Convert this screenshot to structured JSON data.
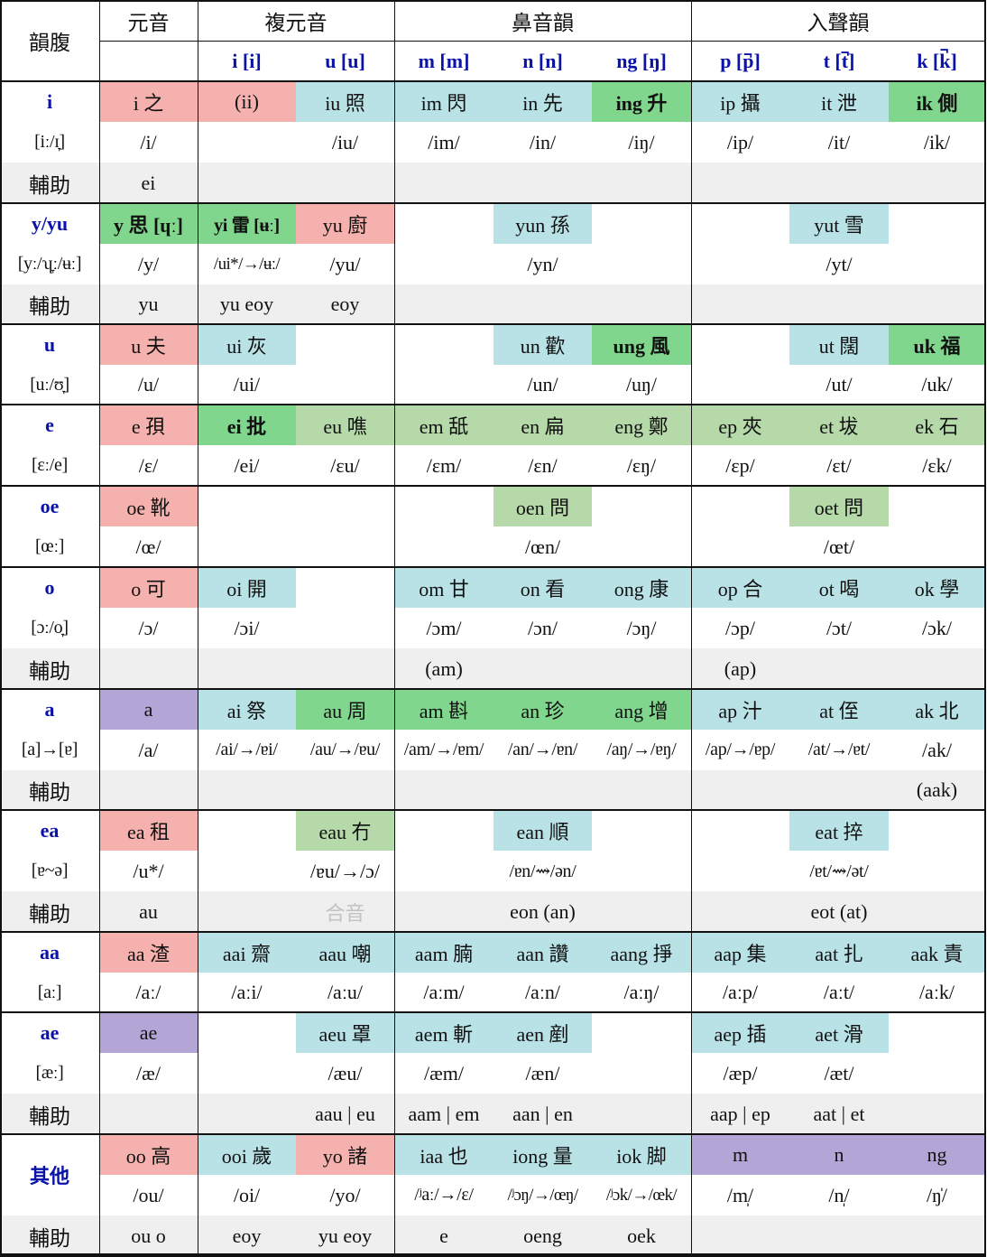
{
  "colors": {
    "pink": "#f4b1ad",
    "cyan": "#b9e2e7",
    "green": "#7fd68c",
    "lightgreen": "#b6d9a9",
    "purple": "#b3a6d6",
    "gray": "#efefef",
    "header_blue": "#0b12a8"
  },
  "headers": {
    "corner": "韻腹",
    "groups": [
      "元音",
      "複元音",
      "鼻音韻",
      "入聲韻"
    ],
    "codas": [
      "i [i]",
      "u [u]",
      "m [m]",
      "n [n]",
      "ng [ŋ]",
      "p [p̚]",
      "t [t̚]",
      "k [k̚]"
    ]
  },
  "rows": [
    {
      "id": "i",
      "name": "i",
      "ipa": "[iː/ɪ̞]",
      "main": [
        {
          "t": "i 之",
          "c": "pink"
        },
        {
          "t": "(ii)",
          "c": "pink"
        },
        {
          "t": "iu 照",
          "c": "cyan"
        },
        {
          "t": "im 閃",
          "c": "cyan"
        },
        {
          "t": "in 先",
          "c": "cyan"
        },
        {
          "t": "ing 升",
          "c": "green",
          "b": 1
        },
        {
          "t": "ip 攝",
          "c": "cyan"
        },
        {
          "t": "it 泄",
          "c": "cyan"
        },
        {
          "t": "ik 側",
          "c": "green",
          "b": 1
        }
      ],
      "ipa_row": [
        "/i/",
        "",
        "/iu/",
        "/im/",
        "/in/",
        "/iŋ/",
        "/ip/",
        "/it/",
        "/ik/"
      ],
      "aux_label": "輔助",
      "aux": [
        "ei",
        "",
        "",
        "",
        "",
        "",
        "",
        "",
        ""
      ]
    },
    {
      "id": "y",
      "name": "y/yu",
      "ipa": "[yː/ʮ̞ː/ʉː]",
      "main": [
        {
          "t": "y 思 [ɥː]",
          "c": "green",
          "b": 1
        },
        {
          "t": "yi 雷 [ʉː]",
          "c": "green",
          "b": 1
        },
        {
          "t": "yu 廚",
          "c": "pink"
        },
        {
          "t": "",
          "c": ""
        },
        {
          "t": "yun 孫",
          "c": "cyan"
        },
        {
          "t": "",
          "c": ""
        },
        {
          "t": "",
          "c": ""
        },
        {
          "t": "yut 雪",
          "c": "cyan"
        },
        {
          "t": "",
          "c": ""
        }
      ],
      "ipa_row": [
        "/y/",
        "/ui*/→/ʉː/",
        "/yu/",
        "",
        "/yn/",
        "",
        "",
        "/yt/",
        ""
      ],
      "aux_label": "輔助",
      "aux": [
        "yu",
        "yu eoy",
        "eoy",
        "",
        "",
        "",
        "",
        "",
        ""
      ]
    },
    {
      "id": "u",
      "name": "u",
      "ipa": "[uː/ʊ̞]",
      "main": [
        {
          "t": "u 夫",
          "c": "pink"
        },
        {
          "t": "ui 灰",
          "c": "cyan"
        },
        {
          "t": "",
          "c": ""
        },
        {
          "t": "",
          "c": ""
        },
        {
          "t": "un 歡",
          "c": "cyan"
        },
        {
          "t": "ung 風",
          "c": "green",
          "b": 1
        },
        {
          "t": "",
          "c": ""
        },
        {
          "t": "ut 闊",
          "c": "cyan"
        },
        {
          "t": "uk 福",
          "c": "green",
          "b": 1
        }
      ],
      "ipa_row": [
        "/u/",
        "/ui/",
        "",
        "",
        "/un/",
        "/uŋ/",
        "",
        "/ut/",
        "/uk/"
      ]
    },
    {
      "id": "e",
      "name": "e",
      "ipa": "[ɛː/e]",
      "main": [
        {
          "t": "e 孭",
          "c": "pink"
        },
        {
          "t": "ei 批",
          "c": "green",
          "b": 1
        },
        {
          "t": "eu 噍",
          "c": "lightgreen"
        },
        {
          "t": "em 舐",
          "c": "lightgreen"
        },
        {
          "t": "en 扁",
          "c": "lightgreen"
        },
        {
          "t": "eng 鄭",
          "c": "lightgreen"
        },
        {
          "t": "ep 夾",
          "c": "lightgreen"
        },
        {
          "t": "et 坺",
          "c": "lightgreen"
        },
        {
          "t": "ek 石",
          "c": "lightgreen"
        }
      ],
      "ipa_row": [
        "/ɛ/",
        "/ei/",
        "/ɛu/",
        "/ɛm/",
        "/ɛn/",
        "/ɛŋ/",
        "/ɛp/",
        "/ɛt/",
        "/ɛk/"
      ]
    },
    {
      "id": "oe",
      "name": "oe",
      "ipa": "[œː]",
      "main": [
        {
          "t": "oe 靴",
          "c": "pink"
        },
        {
          "t": "",
          "c": ""
        },
        {
          "t": "",
          "c": ""
        },
        {
          "t": "",
          "c": ""
        },
        {
          "t": "oen 問",
          "c": "lightgreen"
        },
        {
          "t": "",
          "c": ""
        },
        {
          "t": "",
          "c": ""
        },
        {
          "t": "oet 問",
          "c": "lightgreen"
        },
        {
          "t": "",
          "c": ""
        }
      ],
      "ipa_row": [
        "/œ/",
        "",
        "",
        "",
        "/œn/",
        "",
        "",
        "/œt/",
        ""
      ]
    },
    {
      "id": "o",
      "name": "o",
      "ipa": "[ɔː/o̞]",
      "main": [
        {
          "t": "o 可",
          "c": "pink"
        },
        {
          "t": "oi 開",
          "c": "cyan"
        },
        {
          "t": "",
          "c": ""
        },
        {
          "t": "om 甘",
          "c": "cyan"
        },
        {
          "t": "on 看",
          "c": "cyan"
        },
        {
          "t": "ong 康",
          "c": "cyan"
        },
        {
          "t": "op 合",
          "c": "cyan"
        },
        {
          "t": "ot 喝",
          "c": "cyan"
        },
        {
          "t": "ok 學",
          "c": "cyan"
        }
      ],
      "ipa_row": [
        "/ɔ/",
        "/ɔi/",
        "",
        "/ɔm/",
        "/ɔn/",
        "/ɔŋ/",
        "/ɔp/",
        "/ɔt/",
        "/ɔk/"
      ],
      "aux_label": "輔助",
      "aux": [
        "",
        "",
        "",
        "(am)",
        "",
        "",
        "(ap)",
        "",
        ""
      ]
    },
    {
      "id": "a",
      "name": "a",
      "ipa": "[a]→[ɐ]",
      "main": [
        {
          "t": "a",
          "c": "purple"
        },
        {
          "t": "ai 祭",
          "c": "cyan"
        },
        {
          "t": "au 周",
          "c": "green"
        },
        {
          "t": "am 斟",
          "c": "green"
        },
        {
          "t": "an 珍",
          "c": "green"
        },
        {
          "t": "ang 增",
          "c": "green"
        },
        {
          "t": "ap 汁",
          "c": "cyan"
        },
        {
          "t": "at 侄",
          "c": "cyan"
        },
        {
          "t": "ak 北",
          "c": "cyan"
        }
      ],
      "ipa_row": [
        "/a/",
        "/ai/→/ɐi/",
        "/au/→/ɐu/",
        "/am/→/ɐm/",
        "/an/→/ɐn/",
        "/aŋ/→/ɐŋ/",
        "/ap/→/ɐp/",
        "/at/→/ɐt/",
        "/ak/"
      ],
      "aux_label": "輔助",
      "aux": [
        "",
        "",
        "",
        "",
        "",
        "",
        "",
        "",
        "(aak)"
      ]
    },
    {
      "id": "ea",
      "name": "ea",
      "ipa": "[ɐ~ə]",
      "main": [
        {
          "t": "ea 租",
          "c": "pink"
        },
        {
          "t": "",
          "c": ""
        },
        {
          "t": "eau 冇",
          "c": "lightgreen"
        },
        {
          "t": "",
          "c": ""
        },
        {
          "t": "ean 順",
          "c": "cyan"
        },
        {
          "t": "",
          "c": ""
        },
        {
          "t": "",
          "c": ""
        },
        {
          "t": "eat 捽",
          "c": "cyan"
        },
        {
          "t": "",
          "c": ""
        }
      ],
      "ipa_row": [
        "/u*/",
        "",
        "/ɐu/→/ɔ/",
        "",
        "/ɐn/⇝/ən/",
        "",
        "",
        "/ɐt/⇝/ət/",
        ""
      ],
      "aux_label": "輔助",
      "aux": [
        "au",
        "",
        "合音",
        "",
        "eon (an)",
        "",
        "",
        "eot (at)",
        ""
      ]
    },
    {
      "id": "aa",
      "name": "aa",
      "ipa": "[aː]",
      "main": [
        {
          "t": "aa 渣",
          "c": "pink"
        },
        {
          "t": "aai 齋",
          "c": "cyan"
        },
        {
          "t": "aau 嘲",
          "c": "cyan"
        },
        {
          "t": "aam 腩",
          "c": "cyan"
        },
        {
          "t": "aan 讚",
          "c": "cyan"
        },
        {
          "t": "aang 掙",
          "c": "cyan"
        },
        {
          "t": "aap 集",
          "c": "cyan"
        },
        {
          "t": "aat 扎",
          "c": "cyan"
        },
        {
          "t": "aak 責",
          "c": "cyan"
        }
      ],
      "ipa_row": [
        "/aː/",
        "/aːi/",
        "/aːu/",
        "/aːm/",
        "/aːn/",
        "/aːŋ/",
        "/aːp/",
        "/aːt/",
        "/aːk/"
      ]
    },
    {
      "id": "ae",
      "name": "ae",
      "ipa": "[æː]",
      "main": [
        {
          "t": "ae",
          "c": "purple"
        },
        {
          "t": "",
          "c": ""
        },
        {
          "t": "aeu 罩",
          "c": "cyan"
        },
        {
          "t": "aem 斬",
          "c": "cyan"
        },
        {
          "t": "aen 剷",
          "c": "cyan"
        },
        {
          "t": "",
          "c": ""
        },
        {
          "t": "aep 插",
          "c": "cyan"
        },
        {
          "t": "aet 滑",
          "c": "cyan"
        },
        {
          "t": "",
          "c": ""
        }
      ],
      "ipa_row": [
        "/æ/",
        "",
        "/æu/",
        "/æm/",
        "/æn/",
        "",
        "/æp/",
        "/æt/",
        ""
      ],
      "aux_label": "輔助",
      "aux": [
        "",
        "",
        "aau | eu",
        "aam | em",
        "aan | en",
        "",
        "aap | ep",
        "aat | et",
        ""
      ]
    },
    {
      "id": "other",
      "name": "其他",
      "ipa": "",
      "main": [
        {
          "t": "oo 高",
          "c": "pink"
        },
        {
          "t": "ooi 歲",
          "c": "cyan"
        },
        {
          "t": "yo 諸",
          "c": "pink"
        },
        {
          "t": "iaa 也",
          "c": "cyan"
        },
        {
          "t": "iong 量",
          "c": "cyan"
        },
        {
          "t": "iok 脚",
          "c": "cyan"
        },
        {
          "t": "m",
          "c": "purple"
        },
        {
          "t": "n",
          "c": "purple"
        },
        {
          "t": "ng",
          "c": "purple"
        }
      ],
      "ipa_row": [
        "/ou/",
        "/oi/",
        "/yo/",
        "/ʲaː/→/ɛ/",
        "/ʲɔŋ/→/œŋ/",
        "/ʲɔk/→/œk/",
        "/m̩/",
        "/n̩/",
        "/ŋ̍/"
      ],
      "aux_label": "輔助",
      "aux": [
        "ou o",
        "eoy",
        "yu eoy",
        "e",
        "oeng",
        "oek",
        "",
        "",
        ""
      ]
    }
  ]
}
